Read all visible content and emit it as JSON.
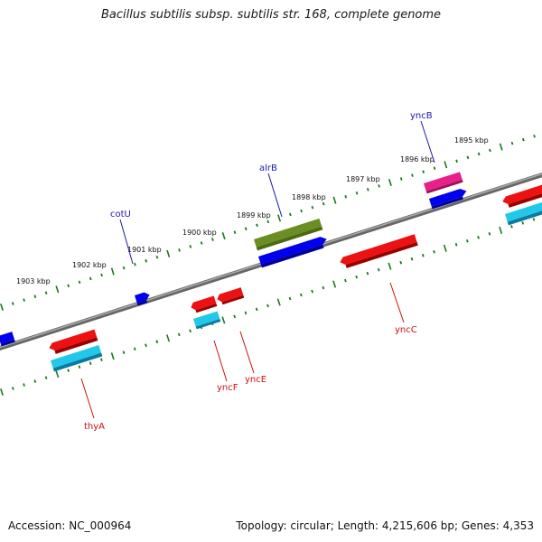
{
  "title": "Bacillus subtilis subsp. subtilis str. 168, complete genome",
  "footer": {
    "accession": "Accession: NC_000964",
    "summary": "Topology: circular; Length: 4,215,606 bp; Genes: 4,353"
  },
  "kbp_labels": [
    "1903 kbp",
    "1902 kbp",
    "1901 kbp",
    "1900 kbp",
    "1899 kbp",
    "1898 kbp",
    "1897 kbp",
    "1896 kbp",
    "1895 kbp"
  ],
  "gene_labels": [
    {
      "name": "cotU",
      "color": "#1a1aaa"
    },
    {
      "name": "alrB",
      "color": "#1a1aaa"
    },
    {
      "name": "yncB",
      "color": "#1a1aaa"
    },
    {
      "name": "yncC",
      "color": "#cc1111"
    },
    {
      "name": "yncF",
      "color": "#cc1111"
    },
    {
      "name": "yncE",
      "color": "#cc1111"
    },
    {
      "name": "thyA",
      "color": "#cc1111"
    }
  ],
  "colors": {
    "backbone": "#808080",
    "tick": "#1a7a1a",
    "forward_gene": "#0000ee",
    "reverse_gene": "#ee1111",
    "rna": "#22c8e8",
    "pseudo": "#6b8e23",
    "pink": "#e8208a"
  }
}
